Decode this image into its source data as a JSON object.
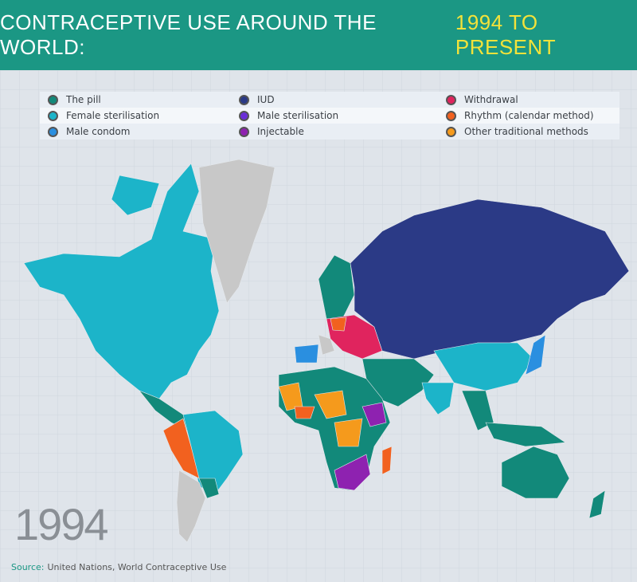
{
  "header": {
    "title": "CONTRACEPTIVE USE AROUND THE WORLD:",
    "highlight": "1994 TO PRESENT"
  },
  "legend": [
    {
      "label": "The pill",
      "color": "#12897a"
    },
    {
      "label": "IUD",
      "color": "#2b3a86"
    },
    {
      "label": "Withdrawal",
      "color": "#e0245e"
    },
    {
      "label": "Female sterilisation",
      "color": "#1cb4c9"
    },
    {
      "label": "Male sterilisation",
      "color": "#6a2fd6"
    },
    {
      "label": "Rhythm (calendar method)",
      "color": "#f2611f"
    },
    {
      "label": "Male condom",
      "color": "#2a8fe0"
    },
    {
      "label": "Injectable",
      "color": "#8e22b0"
    },
    {
      "label": "Other traditional methods",
      "color": "#f59a1c"
    }
  ],
  "year": "1994",
  "source": {
    "label": "Source:",
    "text": "United Nations, World Contraceptive Use"
  }
}
